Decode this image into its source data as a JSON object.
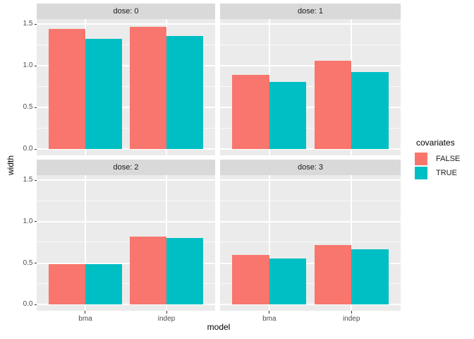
{
  "figure": {
    "y_axis_title": "width",
    "x_axis_title": "model"
  },
  "legend": {
    "title": "covariates",
    "items": [
      {
        "label": "FALSE",
        "color": "#F8766D"
      },
      {
        "label": "TRUE",
        "color": "#00BFC4"
      }
    ]
  },
  "theme": {
    "panel_background": "#EBEBEB",
    "strip_background": "#D9D9D9",
    "gridline_color": "#FFFFFF",
    "axis_text_color": "#4D4D4D",
    "tick_mark_color": "#333333"
  },
  "chart_data": {
    "type": "bar",
    "bar_layout": "dodge",
    "facet_variable": "dose",
    "categories": [
      "bma",
      "indep"
    ],
    "series_names": [
      "FALSE",
      "TRUE"
    ],
    "facets": [
      {
        "label": "dose: 0",
        "series": [
          {
            "name": "FALSE",
            "values": [
              1.44,
              1.47
            ]
          },
          {
            "name": "TRUE",
            "values": [
              1.32,
              1.36
            ]
          }
        ]
      },
      {
        "label": "dose: 1",
        "series": [
          {
            "name": "FALSE",
            "values": [
              0.89,
              1.06
            ]
          },
          {
            "name": "TRUE",
            "values": [
              0.81,
              0.93
            ]
          }
        ]
      },
      {
        "label": "dose: 2",
        "series": [
          {
            "name": "FALSE",
            "values": [
              0.49,
              0.82
            ]
          },
          {
            "name": "TRUE",
            "values": [
              0.49,
              0.8
            ]
          }
        ]
      },
      {
        "label": "dose: 3",
        "series": [
          {
            "name": "FALSE",
            "values": [
              0.6,
              0.72
            ]
          },
          {
            "name": "TRUE",
            "values": [
              0.56,
              0.67
            ]
          }
        ]
      }
    ],
    "title": "",
    "xlabel": "model",
    "ylabel": "width",
    "ylim": [
      -0.074,
      1.561
    ],
    "y_major_breaks": [
      0.0,
      0.5,
      1.0,
      1.5
    ],
    "y_minor_breaks": [
      0.25,
      0.75,
      1.25
    ],
    "y_tick_labels": [
      "0.0",
      "0.5",
      "1.0",
      "1.5"
    ],
    "grid": "white major and minor on grey panels",
    "legend_position": "right"
  }
}
